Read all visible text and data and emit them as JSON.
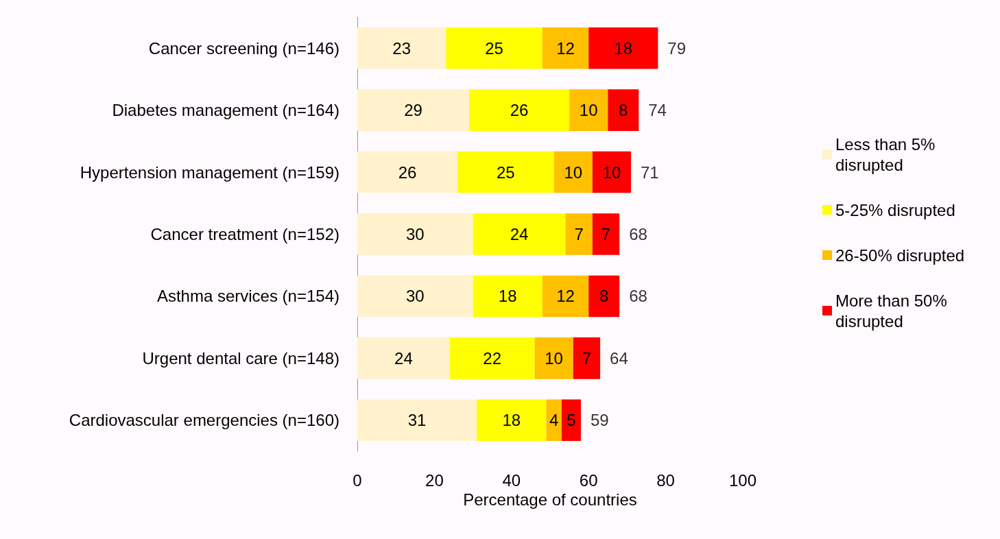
{
  "chart_data": {
    "type": "bar",
    "orientation": "horizontal",
    "stacked": true,
    "data_labels": true,
    "categories": [
      "Cancer screening (n=146)",
      "Diabetes management (n=164)",
      "Hypertension management (n=159)",
      "Cancer treatment (n=152)",
      "Asthma services (n=154)",
      "Urgent dental care (n=148)",
      "Cardiovascular emergencies (n=160)"
    ],
    "series": [
      {
        "name": "Less than 5% disrupted",
        "color": "#fff2cc",
        "values": [
          23,
          29,
          26,
          30,
          30,
          24,
          31
        ]
      },
      {
        "name": "5-25% disrupted",
        "color": "#ffff00",
        "values": [
          25,
          26,
          25,
          24,
          18,
          22,
          18
        ]
      },
      {
        "name": "26-50% disrupted",
        "color": "#ffc000",
        "values": [
          12,
          10,
          10,
          7,
          12,
          10,
          4
        ]
      },
      {
        "name": "More than 50% disrupted",
        "color": "#ff0000",
        "values": [
          18,
          8,
          10,
          7,
          8,
          7,
          5
        ]
      }
    ],
    "totals": [
      "79",
      "74",
      "71",
      "68",
      "68",
      "64",
      "59"
    ],
    "xlabel": "Percentage of countries",
    "xlim": [
      0,
      100
    ],
    "xticks": [
      0,
      20,
      40,
      60,
      80,
      100
    ],
    "grid": false,
    "legend": "right"
  }
}
